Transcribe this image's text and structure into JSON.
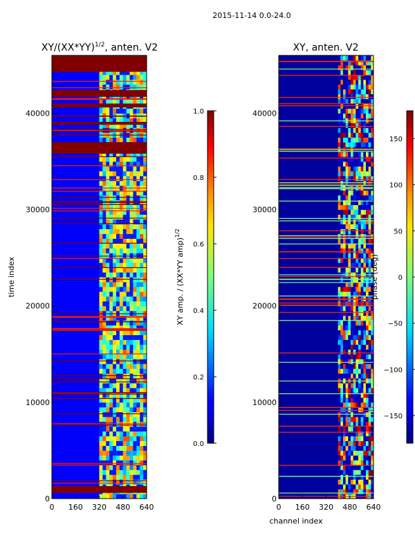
{
  "figure_title": "2015-11-14 0.0-24.0",
  "chart_data": [
    {
      "type": "heatmap",
      "title": "XY/(XX*YY)",
      "title_exponent": "1/2",
      "title_suffix": ", anten. V2",
      "xlabel": "",
      "ylabel": "time index",
      "xlim": [
        0,
        640
      ],
      "ylim": [
        0,
        46000
      ],
      "xticks": [
        0,
        160,
        320,
        480,
        640
      ],
      "yticks": [
        0,
        10000,
        20000,
        30000,
        40000
      ],
      "background_level": 0.12,
      "active_band_channels": [
        320,
        640
      ],
      "flagged_rows": [
        {
          "t_start": 35800,
          "t_end": 37000,
          "value": 1.0
        },
        {
          "t_start": 41700,
          "t_end": 42400,
          "value": 1.0
        },
        {
          "t_start": 40600,
          "t_end": 41000,
          "value": 1.0
        },
        {
          "t_start": 44300,
          "t_end": 46000,
          "value": 1.0
        },
        {
          "t_start": 600,
          "t_end": 1300,
          "value": 1.0
        },
        {
          "t_start": 38800,
          "t_end": 39100,
          "value": 1.0
        }
      ],
      "colorbar": {
        "label": "XY amp. / (XX*YY amp)",
        "label_exponent": "1/2",
        "range": [
          0.0,
          1.0
        ],
        "ticks": [
          "0.0",
          "0.2",
          "0.4",
          "0.6",
          "0.8",
          "1.0"
        ],
        "tick_values": [
          0.0,
          0.2,
          0.4,
          0.6,
          0.8,
          1.0
        ]
      }
    },
    {
      "type": "heatmap",
      "title": "XY, anten. V2",
      "xlabel": "channel index",
      "ylabel": "",
      "xlim": [
        0,
        640
      ],
      "ylim": [
        0,
        46000
      ],
      "xticks": [
        0,
        160,
        320,
        480,
        640
      ],
      "yticks": [
        0,
        10000,
        20000,
        30000,
        40000
      ],
      "value_units": "deg",
      "background_level": -170,
      "active_band_channels": [
        400,
        640
      ],
      "colorbar": {
        "label": "phase (deg)",
        "range": [
          -180,
          180
        ],
        "ticks": [
          "−150",
          "−100",
          "−50",
          "0",
          "50",
          "100",
          "150"
        ],
        "tick_values": [
          -150,
          -100,
          -50,
          0,
          50,
          100,
          150
        ]
      }
    }
  ]
}
